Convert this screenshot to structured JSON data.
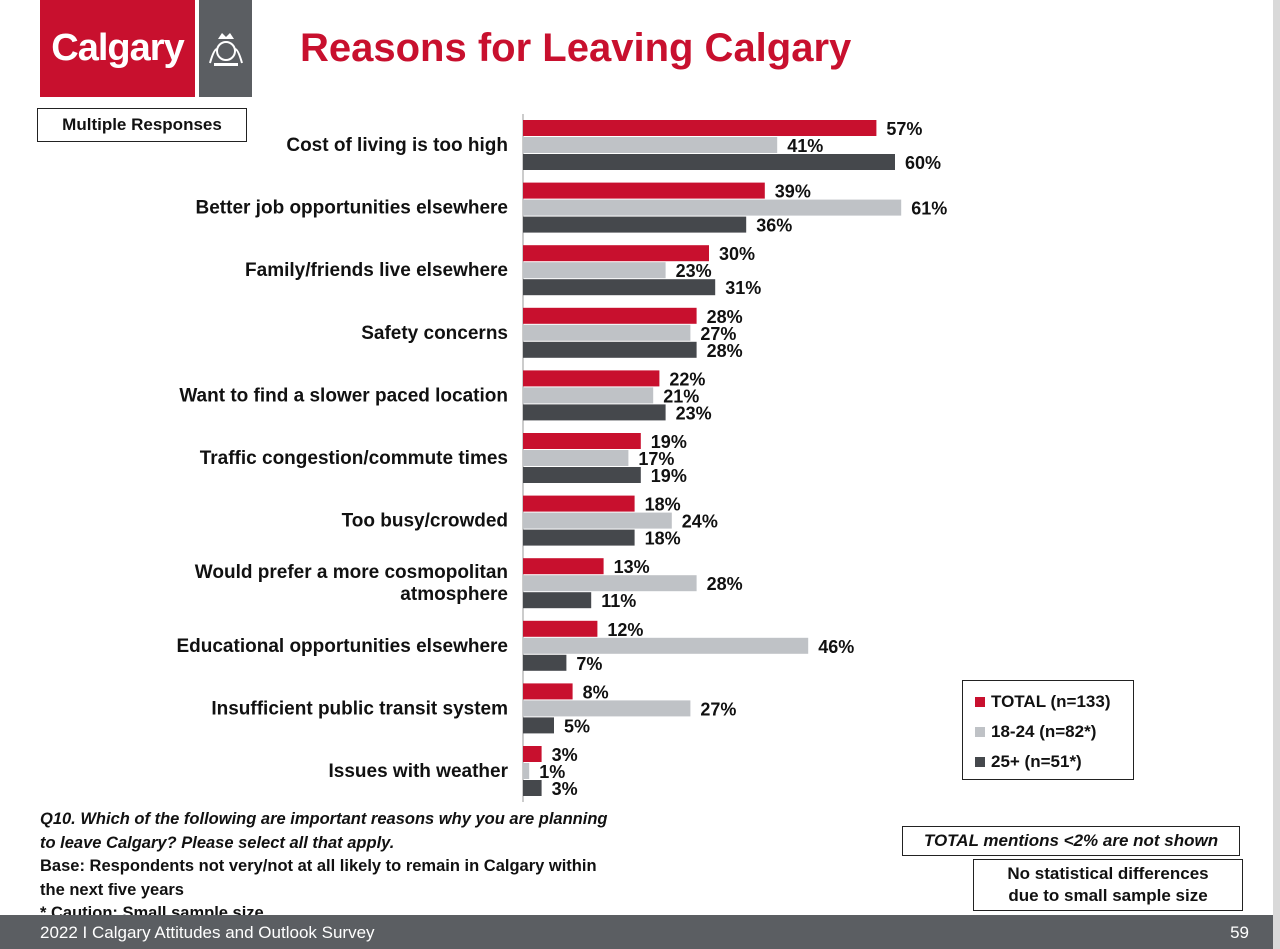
{
  "logo": {
    "text": "Calgary",
    "crest_icon": "crest-icon"
  },
  "title": "Reasons for Leaving Calgary",
  "multiple_responses": "Multiple Responses",
  "chart_data": {
    "type": "bar",
    "orientation": "horizontal",
    "title": "Reasons for Leaving Calgary",
    "xlabel": "",
    "ylabel": "",
    "xlim": [
      0,
      100
    ],
    "categories": [
      "Cost of living is too high",
      "Better job opportunities elsewhere",
      "Family/friends live elsewhere",
      "Safety concerns",
      "Want to find a slower paced location",
      "Traffic congestion/commute times",
      "Too busy/crowded",
      "Would prefer a more cosmopolitan atmosphere",
      "Educational opportunities elsewhere",
      "Insufficient public transit system",
      "Issues with weather"
    ],
    "category_lines": [
      [
        "Cost of living is too high"
      ],
      [
        "Better job opportunities elsewhere"
      ],
      [
        "Family/friends live elsewhere"
      ],
      [
        "Safety concerns"
      ],
      [
        "Want to find a slower paced location"
      ],
      [
        "Traffic congestion/commute times"
      ],
      [
        "Too busy/crowded"
      ],
      [
        "Would prefer a more cosmopolitan",
        "atmosphere"
      ],
      [
        "Educational opportunities elsewhere"
      ],
      [
        "Insufficient public transit system"
      ],
      [
        "Issues with weather"
      ]
    ],
    "series": [
      {
        "name": "TOTAL (n=133)",
        "color": "#c8102e",
        "values": [
          57,
          39,
          30,
          28,
          22,
          19,
          18,
          13,
          12,
          8,
          3
        ]
      },
      {
        "name": "18-24 (n=82*)",
        "color": "#bfc2c6",
        "values": [
          41,
          61,
          23,
          27,
          21,
          17,
          24,
          28,
          46,
          27,
          1
        ]
      },
      {
        "name": "25+ (n=51*)",
        "color": "#45484c",
        "values": [
          60,
          36,
          31,
          28,
          23,
          19,
          18,
          11,
          7,
          5,
          3
        ]
      }
    ],
    "value_suffix": "%",
    "legend_position": "bottom-right"
  },
  "footnote": {
    "question_line1": "Q10. Which of the following are important reasons why you are planning",
    "question_line2": "to leave Calgary? Please select all that apply.",
    "base_line1": "Base: Respondents not very/not at all likely to remain in Calgary within",
    "base_line2": "the next five years",
    "caution": "* Caution: Small sample size"
  },
  "notes": {
    "total_mentions": "TOTAL mentions <2% are not shown",
    "stat_line1": "No statistical differences",
    "stat_line2": "due to small sample size"
  },
  "footer": {
    "survey": "2022 I Calgary Attitudes and Outlook Survey",
    "page": "59"
  }
}
